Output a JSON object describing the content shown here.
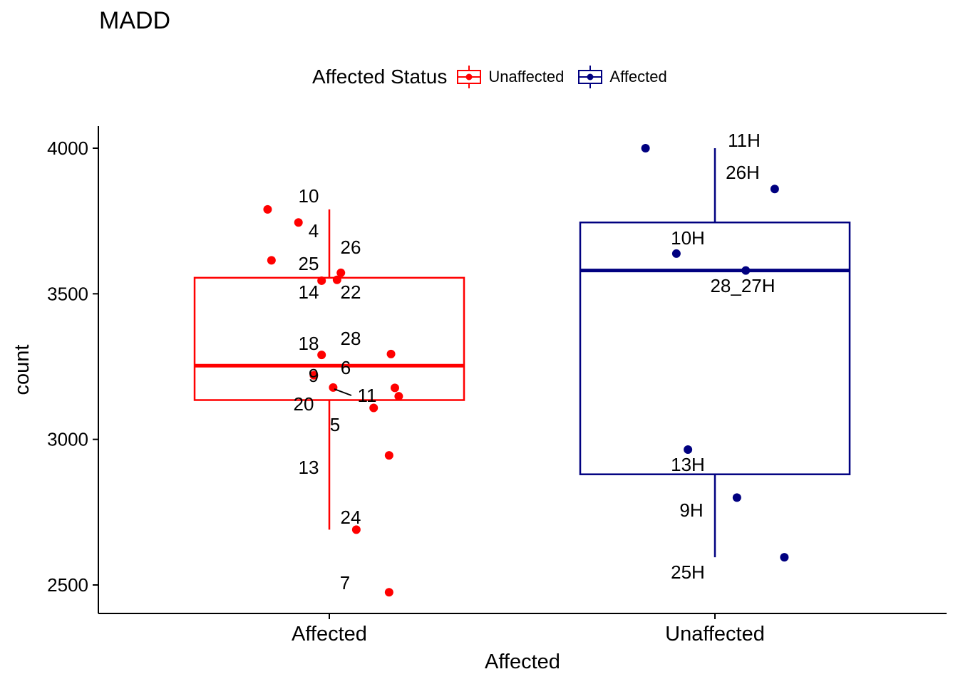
{
  "chart_data": {
    "type": "box",
    "title": "MADD",
    "xlabel": "Affected",
    "ylabel": "count",
    "categories": [
      "Affected",
      "Unaffected"
    ],
    "yticks": [
      2500,
      3000,
      3500,
      4000
    ],
    "ylim": [
      2465,
      4075
    ],
    "legend": {
      "title": "Affected Status",
      "position": "top",
      "entries": [
        {
          "label": "Unaffected",
          "color": "#FF0000"
        },
        {
          "label": "Affected",
          "color": "#000080"
        }
      ]
    },
    "boxes": [
      {
        "category": "Affected",
        "color": "#FF0000",
        "whisker_low": 2690,
        "q1": 3135,
        "median": 3253,
        "q3": 3555,
        "whisker_high": 3790
      },
      {
        "category": "Unaffected",
        "color": "#000080",
        "whisker_low": 2595,
        "q1": 2880,
        "median": 3580,
        "q3": 3745,
        "whisker_high": 4000
      }
    ],
    "series": [
      {
        "category": "Affected",
        "color": "#FF0000",
        "points": [
          {
            "label": "10",
            "jitter": -0.16,
            "y": 3790
          },
          {
            "label": "4",
            "jitter": -0.08,
            "y": 3745
          },
          {
            "label": "25",
            "jitter": -0.15,
            "y": 3615
          },
          {
            "label": "26",
            "jitter": 0.03,
            "y": 3572
          },
          {
            "label": "14",
            "jitter": -0.02,
            "y": 3545
          },
          {
            "label": "22",
            "jitter": 0.02,
            "y": 3548
          },
          {
            "label": "28",
            "jitter": 0.16,
            "y": 3293
          },
          {
            "label": "18",
            "jitter": -0.02,
            "y": 3290
          },
          {
            "label": "9",
            "jitter": -0.04,
            "y": 3220
          },
          {
            "label": "6",
            "jitter": 0.01,
            "y": 3178
          },
          {
            "label": "11",
            "jitter": 0.17,
            "y": 3177
          },
          {
            "label": "20",
            "jitter": 0.18,
            "y": 3148
          },
          {
            "label": "5",
            "jitter": 0.115,
            "y": 3108
          },
          {
            "label": "13",
            "jitter": 0.155,
            "y": 2945
          },
          {
            "label": "24",
            "jitter": 0.07,
            "y": 2690
          },
          {
            "label": "7",
            "jitter": 0.155,
            "y": 2475
          }
        ]
      },
      {
        "category": "Unaffected",
        "color": "#000080",
        "points": [
          {
            "label": "11H",
            "jitter": -0.18,
            "y": 4000
          },
          {
            "label": "26H",
            "jitter": 0.155,
            "y": 3860
          },
          {
            "label": "10H",
            "jitter": -0.1,
            "y": 3638
          },
          {
            "label": "28_27H",
            "jitter": 0.08,
            "y": 3580
          },
          {
            "label": "13H",
            "jitter": -0.07,
            "y": 2965
          },
          {
            "label": "9H",
            "jitter": 0.057,
            "y": 2800
          },
          {
            "label": "25H",
            "jitter": 0.18,
            "y": 2595
          }
        ]
      }
    ]
  }
}
